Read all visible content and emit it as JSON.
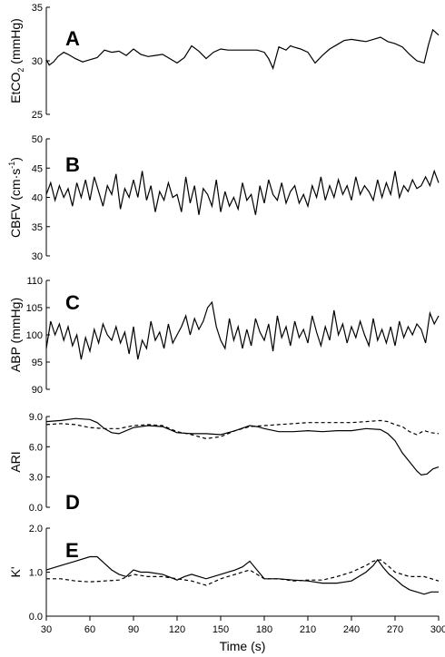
{
  "chart_data": [
    {
      "type": "line",
      "panel": "A",
      "ylabel_main": "EtCO",
      "ylabel_sub": "2",
      "ylabel_unit": " (mmHg)",
      "ylim": [
        25,
        35
      ],
      "yticks": [
        "25",
        "30",
        "35"
      ],
      "xlim": [
        30,
        300
      ],
      "series": [
        {
          "style": "solid",
          "x": [
            30,
            32,
            35,
            38,
            42,
            45,
            50,
            55,
            60,
            65,
            70,
            75,
            80,
            85,
            90,
            95,
            100,
            105,
            110,
            115,
            120,
            125,
            130,
            135,
            140,
            145,
            150,
            155,
            160,
            165,
            170,
            175,
            180,
            183,
            186,
            190,
            195,
            198,
            200,
            205,
            210,
            215,
            220,
            225,
            230,
            235,
            240,
            245,
            250,
            255,
            260,
            265,
            270,
            275,
            280,
            285,
            290,
            293,
            296,
            300
          ],
          "y": [
            30.1,
            29.6,
            29.9,
            30.4,
            30.8,
            30.6,
            30.2,
            29.9,
            30.1,
            30.3,
            31.0,
            30.8,
            30.9,
            30.5,
            31.1,
            30.6,
            30.4,
            30.5,
            30.6,
            30.2,
            29.8,
            30.3,
            31.4,
            30.9,
            30.2,
            30.8,
            31.1,
            31.0,
            31.0,
            31.0,
            31.0,
            31.0,
            30.8,
            30.2,
            29.3,
            31.3,
            31.0,
            31.4,
            31.3,
            31.1,
            30.8,
            29.8,
            30.5,
            31.1,
            31.5,
            31.9,
            32.0,
            31.9,
            31.8,
            32.0,
            32.2,
            31.8,
            31.6,
            31.3,
            30.6,
            30.0,
            29.8,
            31.5,
            32.9,
            32.4
          ]
        }
      ]
    },
    {
      "type": "line",
      "panel": "B",
      "ylabel_main": "CBFV (cm·s",
      "ylabel_sup": "-1",
      "ylabel_unit": ")",
      "ylim": [
        30,
        50
      ],
      "yticks": [
        "30",
        "35",
        "40",
        "45",
        "50"
      ],
      "xlim": [
        30,
        300
      ],
      "series": [
        {
          "style": "solid",
          "x": [
            30,
            33,
            36,
            39,
            42,
            45,
            48,
            51,
            54,
            57,
            60,
            63,
            66,
            69,
            72,
            75,
            78,
            81,
            84,
            87,
            90,
            93,
            96,
            99,
            102,
            105,
            108,
            111,
            114,
            117,
            120,
            123,
            126,
            129,
            132,
            135,
            138,
            141,
            144,
            147,
            150,
            153,
            156,
            159,
            162,
            165,
            168,
            171,
            174,
            177,
            180,
            183,
            186,
            189,
            192,
            195,
            198,
            201,
            204,
            207,
            210,
            213,
            216,
            219,
            222,
            225,
            228,
            231,
            234,
            237,
            240,
            243,
            246,
            249,
            252,
            255,
            258,
            261,
            264,
            267,
            270,
            273,
            276,
            279,
            282,
            285,
            288,
            291,
            294,
            297,
            300
          ],
          "y": [
            40.5,
            42.5,
            39.5,
            42.0,
            40.0,
            41.5,
            38.5,
            42.5,
            40.0,
            43.0,
            39.5,
            43.5,
            41.0,
            38.5,
            42.0,
            40.5,
            44.0,
            38.0,
            41.5,
            40.0,
            43.0,
            40.0,
            44.5,
            39.5,
            42.0,
            37.5,
            41.0,
            39.5,
            42.5,
            40.0,
            40.5,
            37.5,
            43.5,
            39.0,
            42.0,
            37.0,
            41.5,
            40.5,
            38.5,
            43.0,
            37.5,
            41.0,
            38.5,
            40.0,
            38.0,
            42.5,
            39.5,
            40.5,
            37.0,
            42.0,
            39.0,
            43.0,
            40.5,
            39.5,
            42.5,
            39.0,
            41.0,
            42.0,
            39.0,
            40.5,
            38.5,
            42.0,
            40.0,
            43.5,
            39.5,
            42.0,
            40.0,
            43.0,
            40.5,
            42.0,
            39.5,
            43.5,
            40.5,
            42.0,
            41.0,
            39.5,
            43.0,
            40.0,
            42.5,
            40.5,
            44.5,
            40.0,
            42.0,
            41.0,
            43.0,
            41.5,
            42.0,
            43.5,
            42.0,
            44.5,
            42.5
          ]
        }
      ]
    },
    {
      "type": "line",
      "panel": "C",
      "ylabel_main": "ABP (mmHg)",
      "ylim": [
        90,
        110
      ],
      "yticks": [
        "90",
        "95",
        "100",
        "105",
        "110"
      ],
      "xlim": [
        30,
        300
      ],
      "series": [
        {
          "style": "solid",
          "x": [
            30,
            33,
            36,
            39,
            42,
            45,
            48,
            51,
            54,
            57,
            60,
            63,
            66,
            69,
            72,
            75,
            78,
            81,
            84,
            87,
            90,
            93,
            96,
            99,
            102,
            105,
            108,
            111,
            114,
            117,
            120,
            123,
            126,
            129,
            132,
            135,
            138,
            141,
            144,
            147,
            150,
            153,
            156,
            159,
            162,
            165,
            168,
            171,
            174,
            177,
            180,
            183,
            186,
            189,
            192,
            195,
            198,
            201,
            204,
            207,
            210,
            213,
            216,
            219,
            222,
            225,
            228,
            231,
            234,
            237,
            240,
            243,
            246,
            249,
            252,
            255,
            258,
            261,
            264,
            267,
            270,
            273,
            276,
            279,
            282,
            285,
            288,
            291,
            294,
            297,
            300
          ],
          "y": [
            97.5,
            102.5,
            100.0,
            102.0,
            99.0,
            101.5,
            98.0,
            100.0,
            95.5,
            99.5,
            97.0,
            101.0,
            98.5,
            102.0,
            100.0,
            99.0,
            101.5,
            98.5,
            100.5,
            96.5,
            101.5,
            95.5,
            99.0,
            97.5,
            102.5,
            99.0,
            100.5,
            97.5,
            102.0,
            98.5,
            100.0,
            101.5,
            103.5,
            100.0,
            103.0,
            101.0,
            102.5,
            105.0,
            106.0,
            101.5,
            99.0,
            97.5,
            103.0,
            99.0,
            101.5,
            97.5,
            101.0,
            98.0,
            103.0,
            100.5,
            99.0,
            102.0,
            97.0,
            103.5,
            99.5,
            101.5,
            98.0,
            102.5,
            99.5,
            101.0,
            98.5,
            103.5,
            100.5,
            98.0,
            101.5,
            99.0,
            104.5,
            100.0,
            102.0,
            98.5,
            101.5,
            99.5,
            102.5,
            100.0,
            98.0,
            103.0,
            99.0,
            101.0,
            98.5,
            101.5,
            98.0,
            102.5,
            99.5,
            101.5,
            100.0,
            102.0,
            101.0,
            98.5,
            104.0,
            102.0,
            103.5
          ]
        }
      ]
    },
    {
      "type": "line",
      "panel": "D",
      "ylabel_main": "ARI",
      "ylim": [
        0,
        9
      ],
      "yticks": [
        "0.0",
        "3.0",
        "6.0",
        "9.0"
      ],
      "xlim": [
        30,
        300
      ],
      "series": [
        {
          "style": "solid",
          "x": [
            30,
            40,
            50,
            60,
            65,
            70,
            75,
            80,
            90,
            100,
            110,
            120,
            130,
            140,
            150,
            160,
            170,
            175,
            180,
            190,
            200,
            210,
            220,
            230,
            240,
            250,
            260,
            265,
            270,
            275,
            280,
            285,
            288,
            292,
            296,
            300
          ],
          "y": [
            8.5,
            8.6,
            8.8,
            8.7,
            8.4,
            7.8,
            7.4,
            7.3,
            7.9,
            8.1,
            8.0,
            7.4,
            7.3,
            7.3,
            7.2,
            7.6,
            8.1,
            8.0,
            7.8,
            7.5,
            7.5,
            7.6,
            7.5,
            7.6,
            7.6,
            7.8,
            7.7,
            7.3,
            6.6,
            5.4,
            4.5,
            3.6,
            3.2,
            3.3,
            3.8,
            4.0
          ]
        },
        {
          "style": "dashed",
          "x": [
            30,
            40,
            50,
            60,
            70,
            80,
            90,
            100,
            110,
            120,
            130,
            140,
            150,
            160,
            170,
            180,
            190,
            200,
            210,
            220,
            230,
            240,
            250,
            260,
            265,
            270,
            275,
            280,
            285,
            290,
            295,
            300
          ],
          "y": [
            8.2,
            8.3,
            8.2,
            7.9,
            7.8,
            7.8,
            8.1,
            8.2,
            8.1,
            7.5,
            7.2,
            6.8,
            7.0,
            7.6,
            8.0,
            8.1,
            8.2,
            8.3,
            8.4,
            8.4,
            8.4,
            8.4,
            8.5,
            8.6,
            8.5,
            8.2,
            8.0,
            7.5,
            7.2,
            7.6,
            7.4,
            7.3
          ]
        }
      ]
    },
    {
      "type": "line",
      "panel": "E",
      "ylabel_main": "K'",
      "ylim": [
        0,
        2
      ],
      "yticks": [
        "0.0",
        "1.0",
        "2.0"
      ],
      "xlim": [
        30,
        300
      ],
      "xticks": [
        "30",
        "60",
        "90",
        "120",
        "150",
        "180",
        "210",
        "240",
        "270",
        "300"
      ],
      "xlabel": "Time (s)",
      "series": [
        {
          "style": "solid",
          "x": [
            30,
            40,
            50,
            60,
            65,
            70,
            75,
            80,
            85,
            90,
            95,
            100,
            110,
            120,
            125,
            130,
            140,
            150,
            160,
            165,
            170,
            175,
            180,
            190,
            200,
            210,
            220,
            230,
            240,
            250,
            255,
            258,
            262,
            266,
            270,
            275,
            280,
            285,
            290,
            295,
            300
          ],
          "y": [
            1.05,
            1.15,
            1.25,
            1.35,
            1.35,
            1.2,
            1.05,
            0.95,
            0.9,
            1.05,
            1.0,
            1.0,
            0.95,
            0.82,
            0.9,
            0.95,
            0.85,
            0.95,
            1.05,
            1.12,
            1.25,
            1.05,
            0.85,
            0.85,
            0.82,
            0.8,
            0.75,
            0.75,
            0.8,
            1.0,
            1.15,
            1.28,
            1.1,
            0.95,
            0.85,
            0.7,
            0.6,
            0.55,
            0.5,
            0.55,
            0.55
          ]
        },
        {
          "style": "dashed",
          "x": [
            30,
            40,
            50,
            60,
            70,
            80,
            90,
            100,
            110,
            120,
            130,
            140,
            150,
            160,
            170,
            180,
            190,
            200,
            210,
            220,
            230,
            240,
            250,
            255,
            260,
            265,
            270,
            280,
            290,
            300
          ],
          "y": [
            0.85,
            0.85,
            0.8,
            0.78,
            0.8,
            0.82,
            0.95,
            0.9,
            0.9,
            0.85,
            0.8,
            0.7,
            0.85,
            0.95,
            1.05,
            0.85,
            0.85,
            0.8,
            0.82,
            0.82,
            0.9,
            1.0,
            1.15,
            1.25,
            1.28,
            1.15,
            1.0,
            0.9,
            0.9,
            0.8
          ]
        }
      ]
    }
  ]
}
